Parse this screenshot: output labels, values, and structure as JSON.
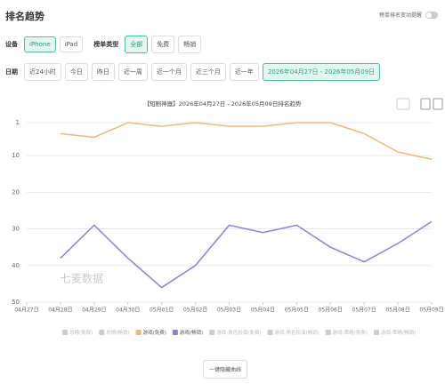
{
  "header": {
    "title": "排名趋势",
    "toggle_label": "榜单排名变动提醒"
  },
  "filters": {
    "device_label": "设备",
    "devices": [
      "iPhone",
      "iPad"
    ],
    "device_active": 0,
    "type_label": "榜单类型",
    "types": [
      "全部",
      "免费",
      "畅销"
    ],
    "type_active": 0,
    "date_label": "日期",
    "dates": [
      "近24小时",
      "今日",
      "昨日",
      "近一周",
      "近一个月",
      "近三个月",
      "近一年",
      "2026年04月27日 - 2026年05月09日"
    ],
    "date_active": 7
  },
  "chart_data": {
    "type": "line",
    "title": "【短剧神器】2026年04月27日 - 2026年05月09日排名趋势",
    "watermark": "七麦数据",
    "categories": [
      "04月27日",
      "04月28日",
      "04月29日",
      "04月30日",
      "05月01日",
      "05月02日",
      "05月03日",
      "05月04日",
      "05月05日",
      "05月06日",
      "05月07日",
      "05月08日",
      "05月09日"
    ],
    "ylim": [
      1,
      50
    ],
    "yticks": [
      1,
      10,
      20,
      30,
      40,
      50
    ],
    "y_inverted": true,
    "grid": true,
    "series": [
      {
        "name": "总榜(免费)",
        "color": "#cccccc",
        "active": false,
        "values": [
          null,
          null,
          null,
          null,
          null,
          null,
          null,
          null,
          null,
          null,
          null,
          null,
          null
        ]
      },
      {
        "name": "总榜(畅销)",
        "color": "#cccccc",
        "active": false,
        "values": [
          null,
          null,
          null,
          null,
          null,
          null,
          null,
          null,
          null,
          null,
          null,
          null,
          null
        ]
      },
      {
        "name": "游戏(免费)",
        "color": "#f0b878",
        "active": true,
        "values": [
          null,
          4,
          5,
          1,
          2,
          1,
          2,
          2,
          1,
          1,
          4,
          9,
          11
        ]
      },
      {
        "name": "游戏(畅销)",
        "color": "#8f7ee0",
        "active": true,
        "values": [
          null,
          38,
          29,
          38,
          46,
          40,
          29,
          31,
          29,
          35,
          39,
          34,
          28
        ]
      },
      {
        "name": "游戏-角色扮演(免费)",
        "color": "#cccccc",
        "active": false,
        "values": [
          null,
          null,
          null,
          null,
          null,
          null,
          null,
          null,
          null,
          null,
          null,
          null,
          null
        ]
      },
      {
        "name": "游戏-角色扮演(畅销)",
        "color": "#cccccc",
        "active": false,
        "values": [
          null,
          null,
          null,
          null,
          null,
          null,
          null,
          null,
          null,
          null,
          null,
          null,
          null
        ]
      },
      {
        "name": "游戏-策略(免费)",
        "color": "#cccccc",
        "active": false,
        "values": [
          null,
          null,
          null,
          null,
          null,
          null,
          null,
          null,
          null,
          null,
          null,
          null,
          null
        ]
      },
      {
        "name": "游戏-策略(畅销)",
        "color": "#cccccc",
        "active": false,
        "values": [
          null,
          null,
          null,
          null,
          null,
          null,
          null,
          null,
          null,
          null,
          null,
          null,
          null
        ]
      }
    ]
  },
  "button": "一键隐藏曲线"
}
